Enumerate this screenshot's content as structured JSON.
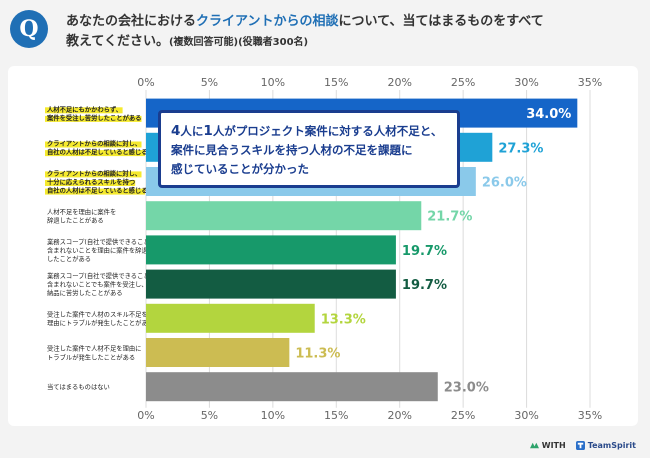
{
  "question": {
    "badge": "Q",
    "part1": "あなたの会社における",
    "highlight": "クライアントからの相談",
    "part2": "について、当てはまるものをすべて",
    "part3": "教えてください。",
    "note": "(複数回答可能)(役職者300名)"
  },
  "callout": {
    "n1": "4",
    "t1": "人に",
    "n2": "1",
    "t2": "人がプロジェクト案件に対する人材不足と、",
    "line2": "案件に見合うスキルを持つ人材の不足を課題に",
    "line3": "感じていることが分かった"
  },
  "chart_data": {
    "type": "bar",
    "orientation": "horizontal",
    "xlim": [
      0,
      35
    ],
    "ticks": [
      "0%",
      "5%",
      "10%",
      "15%",
      "20%",
      "25%",
      "30%",
      "35%"
    ],
    "tick_values": [
      0,
      5,
      10,
      15,
      20,
      25,
      30,
      35
    ],
    "categories": [
      [
        "人材不足にもかかわらず、",
        "案件を受注し苦労したことがある"
      ],
      [
        "クライアントからの相談に対し、",
        "自社の人材は不足していると感じる"
      ],
      [
        "クライアントからの相談に対し、",
        "十分に応えられるスキルを持つ",
        "自社の人材は不足していると感じる"
      ],
      [
        "人材不足を理由に案件を",
        "辞退したことがある"
      ],
      [
        "業務スコープ(自社で提供できること)に",
        "含まれないことを理由に案件を辞退",
        "したことがある"
      ],
      [
        "業務スコープ(自社で提供できること)に",
        "含まれないことでも案件を受注し、",
        "納品に苦労したことがある"
      ],
      [
        "受注した案件で人材のスキル不足を",
        "理由にトラブルが発生したことがある"
      ],
      [
        "受注した案件で人材不足を理由に",
        "トラブルが発生したことがある"
      ],
      [
        "当てはまるものはない"
      ]
    ],
    "values": [
      34.0,
      27.3,
      26.0,
      21.7,
      19.7,
      19.7,
      13.3,
      11.3,
      23.0
    ],
    "value_labels": [
      "34.0%",
      "27.3%",
      "26.0%",
      "21.7%",
      "19.7%",
      "19.7%",
      "13.3%",
      "11.3%",
      "23.0%"
    ],
    "colors": [
      "#1565c8",
      "#1fa2d6",
      "#8ac9ea",
      "#74d6a8",
      "#17996a",
      "#135c42",
      "#b3d53e",
      "#ccbc52",
      "#8c8c8c"
    ],
    "label_colors": [
      "#ffffff",
      "#1fa2d6",
      "#8ac9ea",
      "#74d6a8",
      "#17996a",
      "#135c42",
      "#b3d53e",
      "#ccbc52",
      "#8c8c8c"
    ],
    "highlighted_rows": [
      0,
      1,
      2
    ]
  },
  "logos": {
    "with": "WITH",
    "teamspirit": "TeamSpirit"
  }
}
